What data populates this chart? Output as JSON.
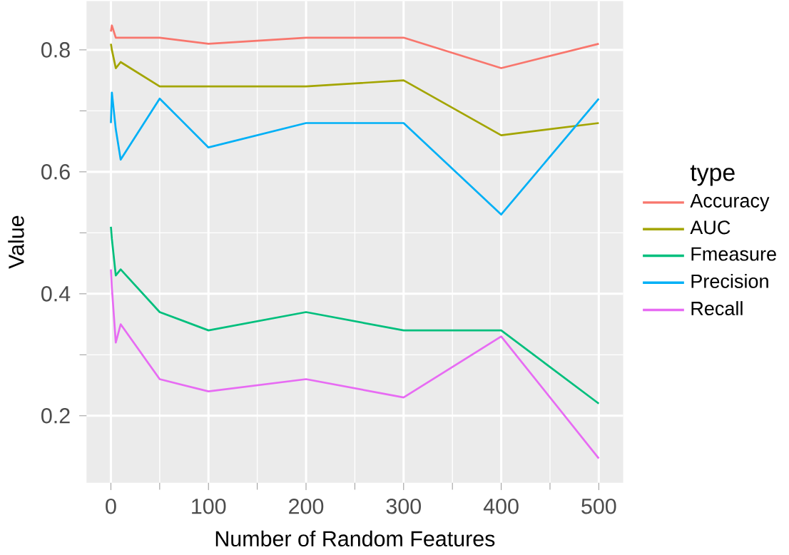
{
  "chart_data": {
    "type": "line",
    "xlabel": "Number of Random Features",
    "ylabel": "Value",
    "legend_title": "type",
    "legend": "right",
    "grid": true,
    "x": [
      0,
      1,
      5,
      10,
      50,
      100,
      200,
      300,
      400,
      500
    ],
    "xlim": [
      -25,
      525
    ],
    "ylim": [
      0.09,
      0.88
    ],
    "xticks": [
      0,
      100,
      200,
      300,
      400,
      500
    ],
    "yticks": [
      0.2,
      0.4,
      0.6,
      0.8
    ],
    "series": [
      {
        "name": "Accuracy",
        "color": "#f8766d",
        "values": [
          0.83,
          0.84,
          0.82,
          0.82,
          0.82,
          0.81,
          0.82,
          0.82,
          0.77,
          0.81
        ]
      },
      {
        "name": "AUC",
        "color": "#a3a500",
        "values": [
          0.81,
          0.8,
          0.77,
          0.78,
          0.74,
          0.74,
          0.74,
          0.75,
          0.66,
          0.68
        ]
      },
      {
        "name": "Fmeasure",
        "color": "#00bf7d",
        "values": [
          0.51,
          0.49,
          0.43,
          0.44,
          0.37,
          0.34,
          0.37,
          0.34,
          0.34,
          0.22
        ]
      },
      {
        "name": "Precision",
        "color": "#00b0f6",
        "values": [
          0.68,
          0.73,
          0.67,
          0.62,
          0.72,
          0.64,
          0.68,
          0.68,
          0.53,
          0.72
        ]
      },
      {
        "name": "Recall",
        "color": "#e76bf3",
        "values": [
          0.44,
          0.41,
          0.32,
          0.35,
          0.26,
          0.24,
          0.26,
          0.23,
          0.33,
          0.13
        ]
      }
    ]
  }
}
